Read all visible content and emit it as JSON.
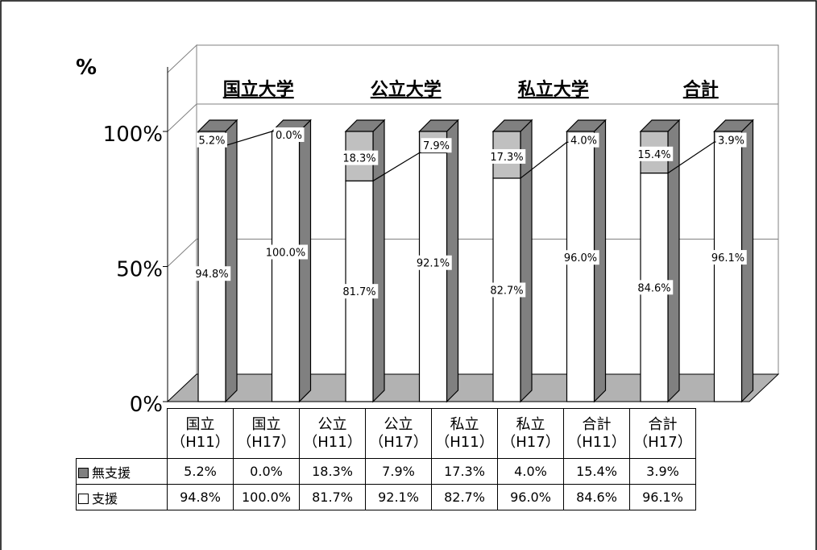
{
  "chart_data": {
    "type": "bar",
    "stacked": true,
    "percent_stacked": true,
    "style": "3d",
    "y_unit": "%",
    "ylim": [
      0,
      100
    ],
    "y_ticks": [
      "0%",
      "50%",
      "100%"
    ],
    "groups": [
      "国立大学",
      "公立大学",
      "私立大学",
      "合計"
    ],
    "categories": [
      [
        "国立",
        "（H11）"
      ],
      [
        "国立",
        "（H17）"
      ],
      [
        "公立",
        "（H11）"
      ],
      [
        "公立",
        "（H17）"
      ],
      [
        "私立",
        "（H11）"
      ],
      [
        "私立",
        "（H17）"
      ],
      [
        "合計",
        "（H11）"
      ],
      [
        "合計",
        "（H17）"
      ]
    ],
    "series": [
      {
        "name": "支援",
        "values": [
          94.8,
          100.0,
          81.7,
          92.1,
          82.7,
          96.0,
          84.6,
          96.1
        ],
        "labels": [
          "94.8%",
          "100.0%",
          "81.7%",
          "92.1%",
          "82.7%",
          "96.0%",
          "84.6%",
          "96.1%"
        ],
        "color": "#ffffff"
      },
      {
        "name": "無支援",
        "values": [
          5.2,
          0.0,
          18.3,
          7.9,
          17.3,
          4.0,
          15.4,
          3.9
        ],
        "labels": [
          "5.2%",
          "0.0%",
          "18.3%",
          "7.9%",
          "17.3%",
          "4.0%",
          "15.4%",
          "3.9%"
        ],
        "color": "#c0c0c0"
      }
    ],
    "colors": {
      "side": "#808080",
      "floor": "#b2b2b2",
      "grid": "#808080"
    },
    "grid": true
  },
  "table": {
    "rows": [
      {
        "label": "無支援",
        "values": [
          "5.2%",
          "0.0%",
          "18.3%",
          "7.9%",
          "17.3%",
          "4.0%",
          "15.4%",
          "3.9%"
        ]
      },
      {
        "label": "支援",
        "values": [
          "94.8%",
          "100.0%",
          "81.7%",
          "92.1%",
          "82.7%",
          "96.0%",
          "84.6%",
          "96.1%"
        ]
      }
    ]
  }
}
